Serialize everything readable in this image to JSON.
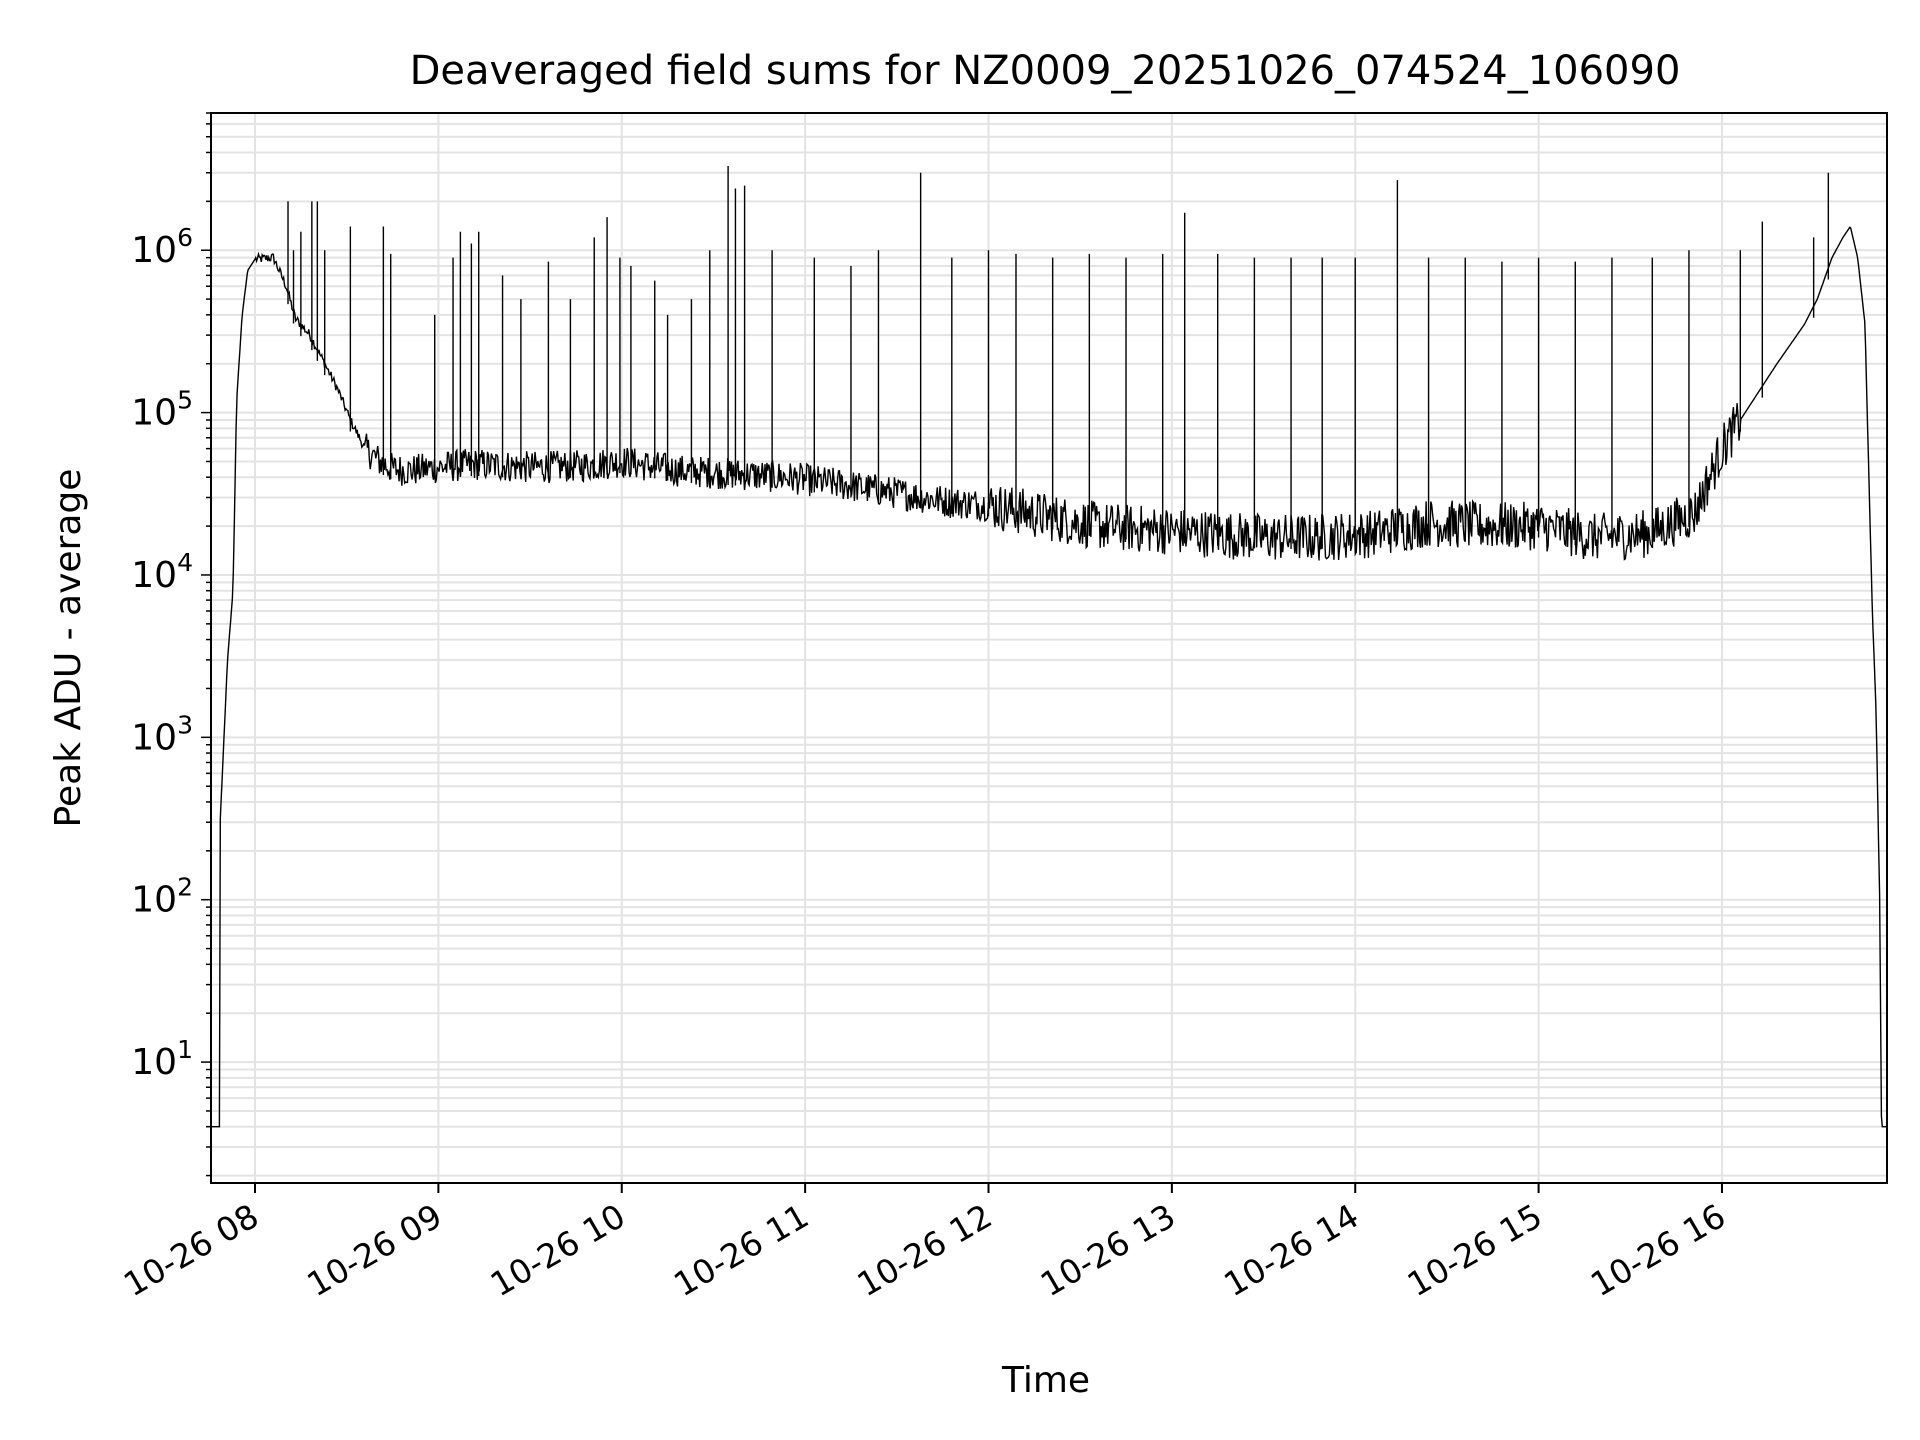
{
  "chart_data": {
    "type": "line",
    "title": "Deaveraged field sums for NZ0009_20251026_074524_106090",
    "xlabel": "Time",
    "ylabel": "Peak ADU - average",
    "yscale": "log",
    "ylim": [
      1.8,
      7000000
    ],
    "xlim_hours": [
      7.76,
      16.9
    ],
    "grid": true,
    "line_color": "#000000",
    "grid_color": "#e3e3e3",
    "x_ticks": [
      {
        "h": 8,
        "label": "10-26 08"
      },
      {
        "h": 9,
        "label": "10-26 09"
      },
      {
        "h": 10,
        "label": "10-26 10"
      },
      {
        "h": 11,
        "label": "10-26 11"
      },
      {
        "h": 12,
        "label": "10-26 12"
      },
      {
        "h": 13,
        "label": "10-26 13"
      },
      {
        "h": 14,
        "label": "10-26 14"
      },
      {
        "h": 15,
        "label": "10-26 15"
      },
      {
        "h": 16,
        "label": "10-26 16"
      }
    ],
    "y_ticks": [
      {
        "v": 10,
        "base": "10",
        "exp": "1"
      },
      {
        "v": 100,
        "base": "10",
        "exp": "2"
      },
      {
        "v": 1000,
        "base": "10",
        "exp": "3"
      },
      {
        "v": 10000,
        "base": "10",
        "exp": "4"
      },
      {
        "v": 100000,
        "base": "10",
        "exp": "5"
      },
      {
        "v": 1000000,
        "base": "10",
        "exp": "6"
      }
    ],
    "series": [
      {
        "name": "deaveraged field sum",
        "x_hours": [
          7.76,
          7.81,
          7.81,
          7.85,
          7.88,
          7.9,
          7.93,
          7.96,
          8.0,
          8.1,
          8.17,
          8.22,
          8.3,
          8.38,
          8.45,
          8.52,
          8.6,
          8.68,
          8.75,
          8.85,
          9.0,
          9.2,
          9.5,
          9.8,
          10.0,
          10.3,
          10.6,
          10.9,
          11.2,
          11.5,
          11.8,
          12.0,
          12.3,
          12.6,
          12.9,
          13.2,
          13.5,
          13.8,
          14.1,
          14.4,
          14.7,
          15.0,
          15.3,
          15.6,
          15.85,
          16.0,
          16.15,
          16.3,
          16.45,
          16.52,
          16.6,
          16.66,
          16.7,
          16.74,
          16.78,
          16.82,
          16.84,
          16.86,
          16.87,
          16.9
        ],
        "values": [
          4,
          4,
          300,
          3000,
          8000,
          120000,
          400000,
          750000,
          880000,
          900000,
          600000,
          380000,
          300000,
          200000,
          140000,
          90000,
          60000,
          50000,
          45000,
          44000,
          46000,
          48000,
          46000,
          47000,
          50000,
          44000,
          42000,
          40000,
          36000,
          32000,
          28000,
          27000,
          23000,
          20000,
          19000,
          18000,
          17000,
          17000,
          18000,
          21000,
          20000,
          20000,
          17000,
          18000,
          24000,
          60000,
          110000,
          200000,
          350000,
          500000,
          900000,
          1200000,
          1400000,
          900000,
          350000,
          6000,
          1500,
          100,
          4,
          4
        ],
        "spikes": [
          {
            "h": 8.18,
            "v": 2000000
          },
          {
            "h": 8.21,
            "v": 1000000
          },
          {
            "h": 8.25,
            "v": 1300000
          },
          {
            "h": 8.31,
            "v": 2000000
          },
          {
            "h": 8.34,
            "v": 2000000
          },
          {
            "h": 8.38,
            "v": 1000000
          },
          {
            "h": 8.52,
            "v": 1400000
          },
          {
            "h": 8.7,
            "v": 1400000
          },
          {
            "h": 8.74,
            "v": 950000
          },
          {
            "h": 8.98,
            "v": 400000
          },
          {
            "h": 9.08,
            "v": 900000
          },
          {
            "h": 9.12,
            "v": 1300000
          },
          {
            "h": 9.18,
            "v": 1100000
          },
          {
            "h": 9.22,
            "v": 1300000
          },
          {
            "h": 9.35,
            "v": 700000
          },
          {
            "h": 9.45,
            "v": 500000
          },
          {
            "h": 9.6,
            "v": 850000
          },
          {
            "h": 9.72,
            "v": 500000
          },
          {
            "h": 9.85,
            "v": 1200000
          },
          {
            "h": 9.92,
            "v": 1600000
          },
          {
            "h": 9.99,
            "v": 900000
          },
          {
            "h": 10.05,
            "v": 800000
          },
          {
            "h": 10.18,
            "v": 650000
          },
          {
            "h": 10.25,
            "v": 400000
          },
          {
            "h": 10.38,
            "v": 500000
          },
          {
            "h": 10.48,
            "v": 1000000
          },
          {
            "h": 10.58,
            "v": 3300000
          },
          {
            "h": 10.62,
            "v": 2400000
          },
          {
            "h": 10.67,
            "v": 2500000
          },
          {
            "h": 10.82,
            "v": 1000000
          },
          {
            "h": 11.05,
            "v": 900000
          },
          {
            "h": 11.25,
            "v": 800000
          },
          {
            "h": 11.4,
            "v": 1000000
          },
          {
            "h": 11.63,
            "v": 3000000
          },
          {
            "h": 11.8,
            "v": 900000
          },
          {
            "h": 12.0,
            "v": 1000000
          },
          {
            "h": 12.15,
            "v": 950000
          },
          {
            "h": 12.35,
            "v": 900000
          },
          {
            "h": 12.55,
            "v": 950000
          },
          {
            "h": 12.75,
            "v": 900000
          },
          {
            "h": 12.95,
            "v": 950000
          },
          {
            "h": 13.07,
            "v": 1700000
          },
          {
            "h": 13.25,
            "v": 950000
          },
          {
            "h": 13.45,
            "v": 900000
          },
          {
            "h": 13.65,
            "v": 900000
          },
          {
            "h": 13.82,
            "v": 900000
          },
          {
            "h": 14.0,
            "v": 900000
          },
          {
            "h": 14.23,
            "v": 2700000
          },
          {
            "h": 14.4,
            "v": 900000
          },
          {
            "h": 14.6,
            "v": 900000
          },
          {
            "h": 14.8,
            "v": 850000
          },
          {
            "h": 15.0,
            "v": 900000
          },
          {
            "h": 15.2,
            "v": 850000
          },
          {
            "h": 15.4,
            "v": 900000
          },
          {
            "h": 15.62,
            "v": 900000
          },
          {
            "h": 15.82,
            "v": 1000000
          },
          {
            "h": 16.1,
            "v": 1000000
          },
          {
            "h": 16.22,
            "v": 1500000
          },
          {
            "h": 16.5,
            "v": 1200000
          },
          {
            "h": 16.58,
            "v": 3000000
          }
        ]
      }
    ]
  }
}
